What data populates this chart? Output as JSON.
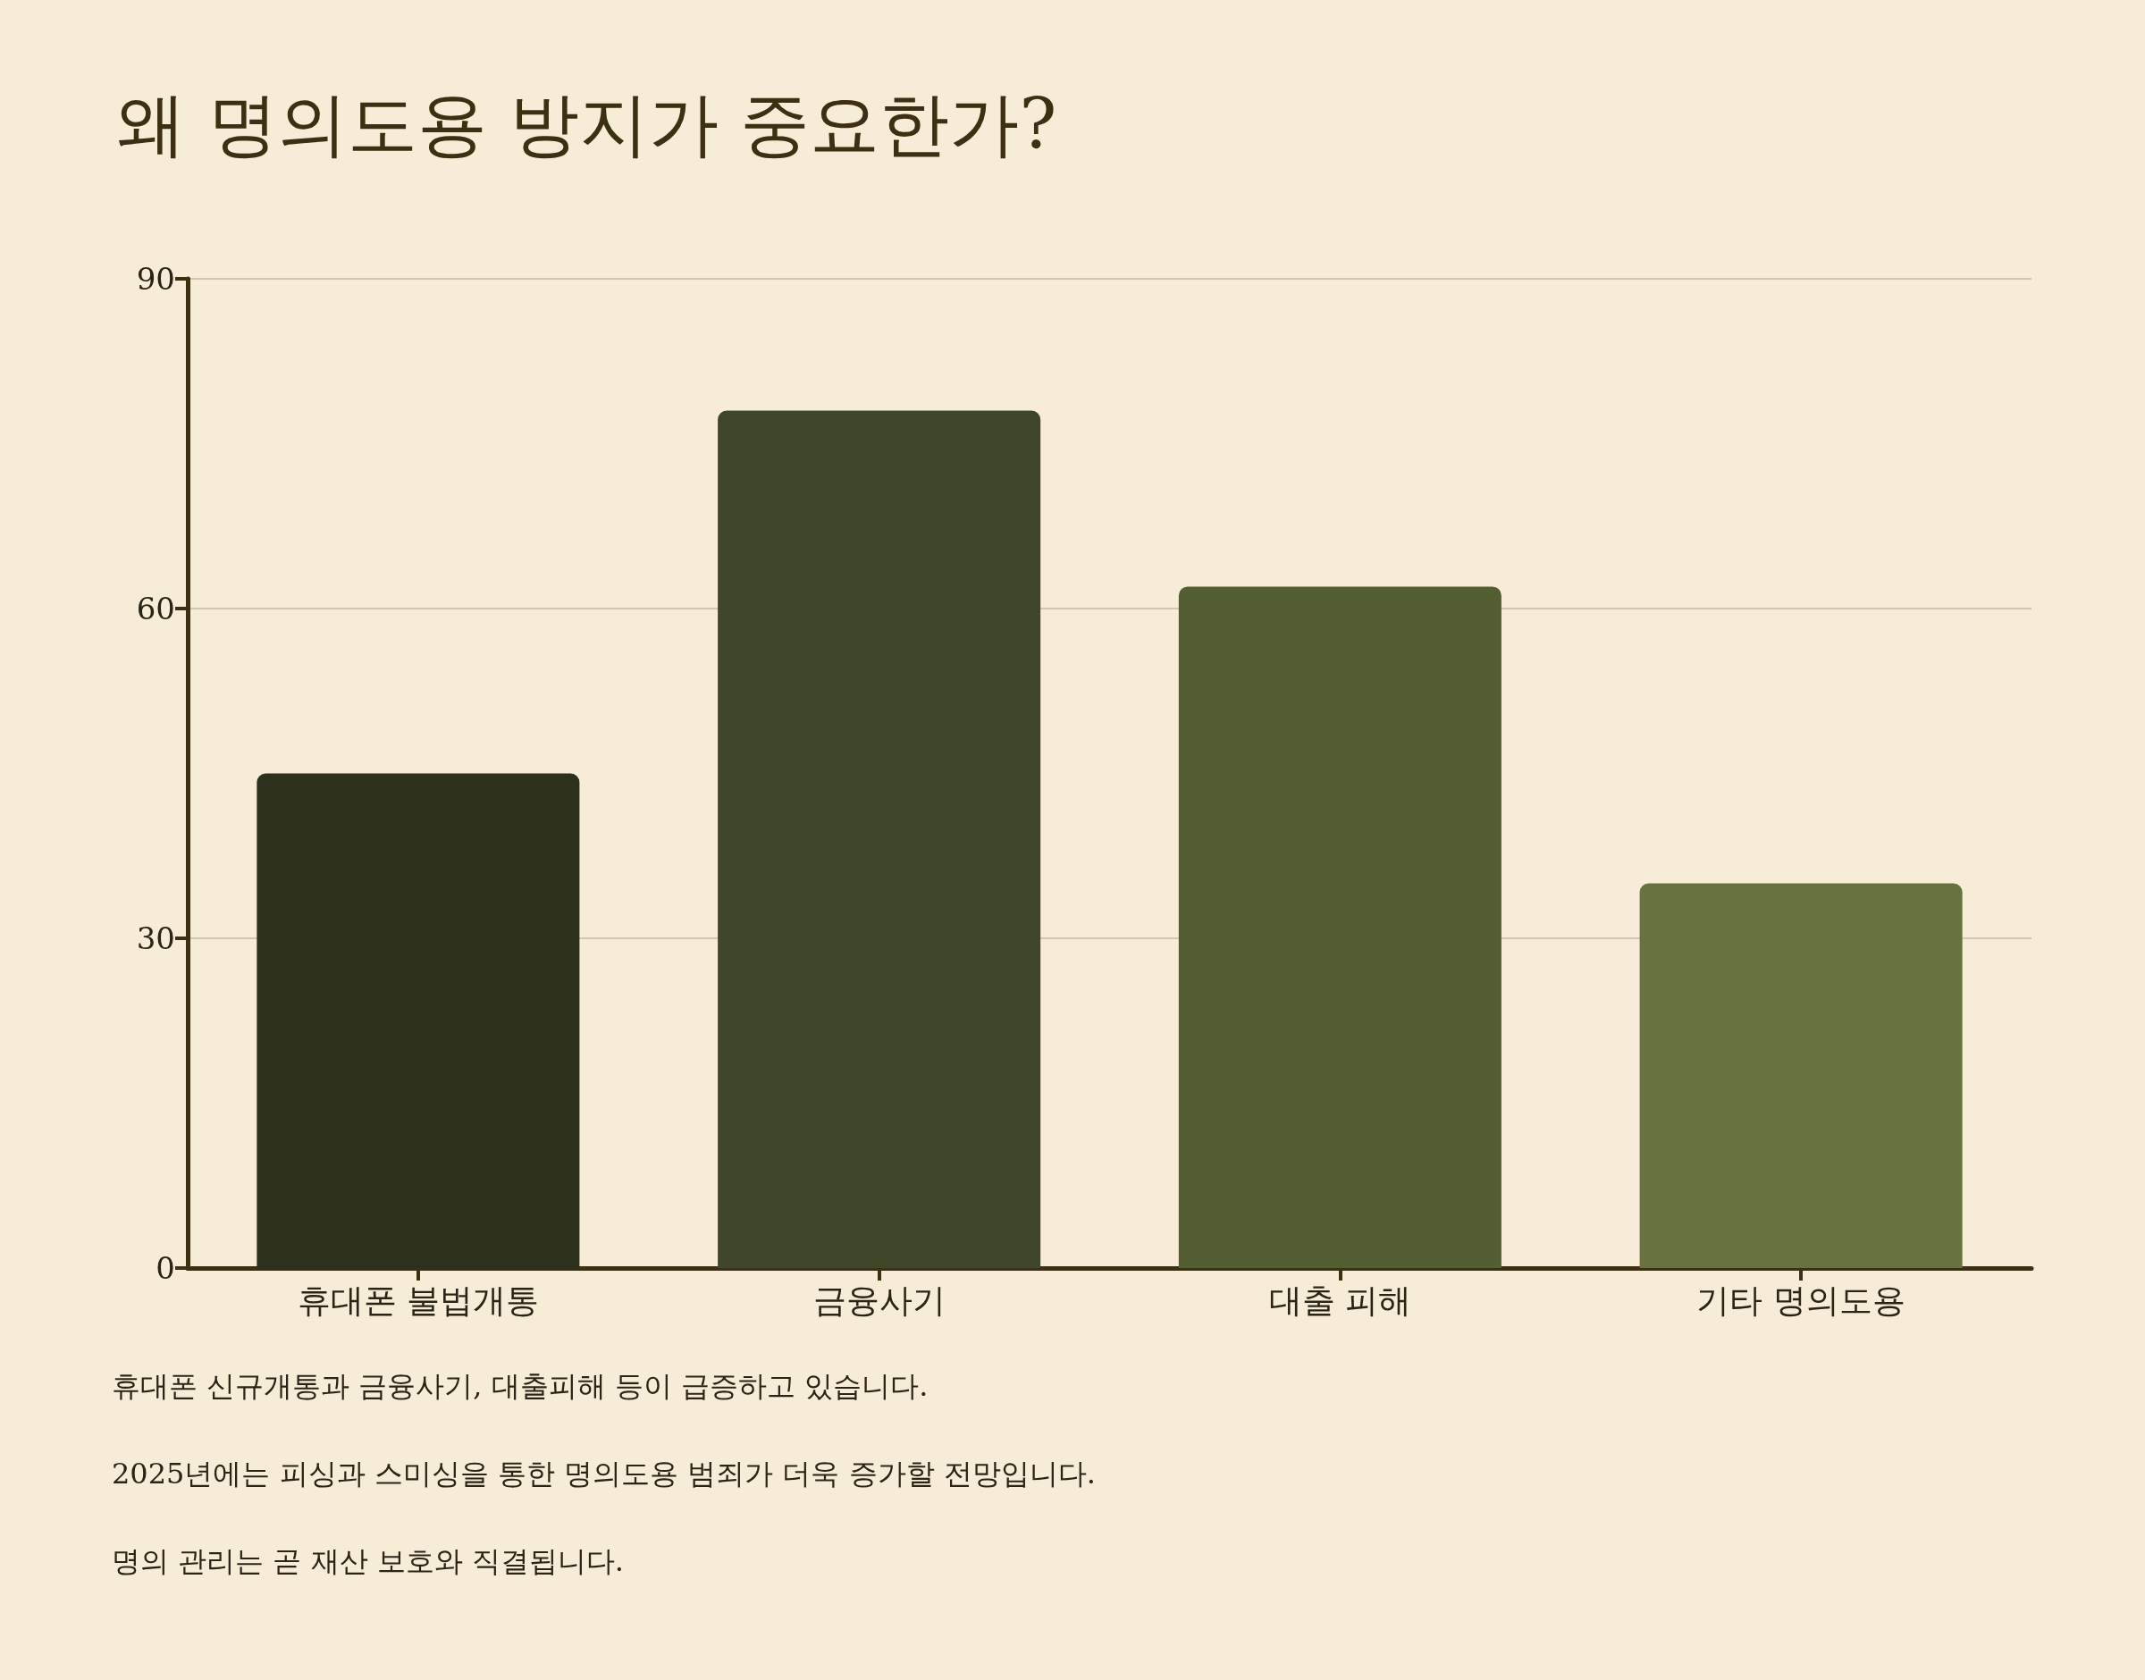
{
  "chart_data": {
    "type": "bar",
    "title": "왜 명의도용 방지가 중요한가?",
    "categories": [
      "휴대폰 불법개통",
      "금융사기",
      "대출 피해",
      "기타 명의도용"
    ],
    "values": [
      45,
      78,
      62,
      35
    ],
    "colors": [
      "#2d301c",
      "#404728",
      "#545e33",
      "#68723e"
    ],
    "ylim": [
      0,
      90
    ],
    "yticks": [
      0,
      30,
      60,
      90
    ],
    "grid": "y",
    "annotations": [
      "휴대폰 신규개통과 금융사기, 대출피해 등이 급증하고 있습니다.",
      "2025년에는 피싱과 스미싱을 통한 명의도용 범죄가 더욱 증가할 전망입니다.",
      "명의 관리는 곧 재산 보호와 직결됩니다."
    ]
  }
}
